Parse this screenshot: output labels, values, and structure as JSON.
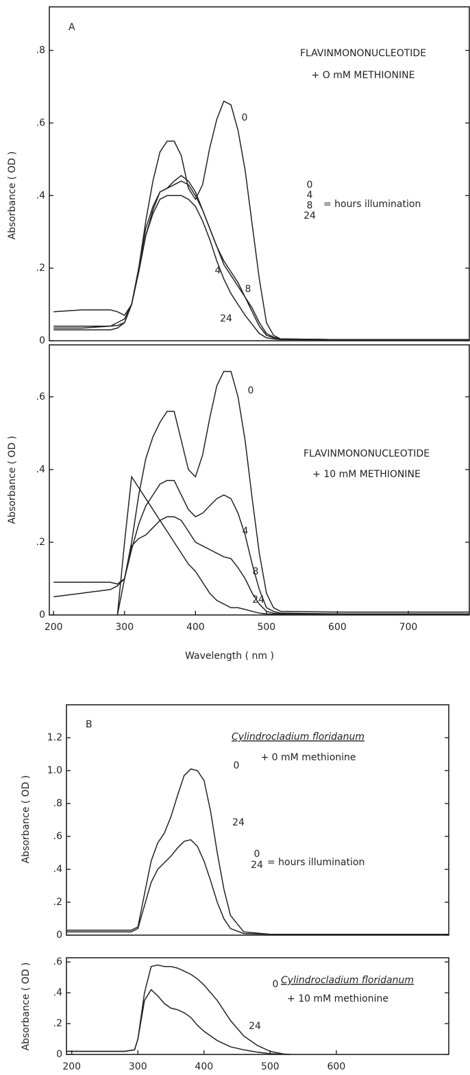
{
  "chart_data": [
    {
      "type": "line",
      "ylabel": "Absorbance ( OD )",
      "annotations": [
        "A",
        "FLAVINMONONUCLEOTIDE",
        "+ O mM METHIONINE",
        "= hours illumination"
      ],
      "xlim": [
        194,
        786
      ],
      "ylim": [
        0,
        0.92
      ],
      "yticks": [
        0,
        {
          "value": 0.2,
          "label": ".2"
        },
        {
          "value": 0.4,
          "label": ".4"
        },
        {
          "value": 0.6,
          "label": ".6"
        },
        {
          "value": 0.8,
          "label": ".8"
        }
      ],
      "x": [
        200,
        240,
        280,
        290,
        300,
        310,
        320,
        330,
        340,
        350,
        360,
        370,
        380,
        390,
        400,
        410,
        420,
        430,
        440,
        450,
        460,
        470,
        480,
        490,
        500,
        510,
        520,
        600,
        700,
        786
      ],
      "series": [
        {
          "name": "0",
          "color": "#222",
          "values": [
            0.035,
            0.035,
            0.04,
            0.05,
            0.06,
            0.1,
            0.2,
            0.33,
            0.44,
            0.52,
            0.55,
            0.55,
            0.51,
            0.42,
            0.39,
            0.43,
            0.53,
            0.61,
            0.66,
            0.65,
            0.58,
            0.47,
            0.32,
            0.17,
            0.05,
            0.015,
            0.005,
            0.003,
            0.003,
            0.003
          ]
        },
        {
          "name": "4",
          "color": "#222",
          "values": [
            0.03,
            0.03,
            0.03,
            0.035,
            0.05,
            0.1,
            0.19,
            0.29,
            0.36,
            0.41,
            0.42,
            0.43,
            0.44,
            0.43,
            0.4,
            0.36,
            0.31,
            0.26,
            0.21,
            0.18,
            0.15,
            0.12,
            0.09,
            0.05,
            0.02,
            0.01,
            0.005,
            0.003,
            0.003,
            0.003
          ]
        },
        {
          "name": "8",
          "color": "#222",
          "values": [
            0.04,
            0.04,
            0.04,
            0.042,
            0.05,
            0.1,
            0.2,
            0.31,
            0.37,
            0.41,
            0.42,
            0.44,
            0.455,
            0.44,
            0.41,
            0.36,
            0.31,
            0.26,
            0.22,
            0.19,
            0.16,
            0.12,
            0.08,
            0.04,
            0.015,
            0.008,
            0.005,
            0.003,
            0.003,
            0.003
          ]
        },
        {
          "name": "24",
          "color": "#222",
          "values": [
            0.08,
            0.085,
            0.085,
            0.08,
            0.07,
            0.1,
            0.19,
            0.29,
            0.35,
            0.39,
            0.4,
            0.4,
            0.4,
            0.39,
            0.37,
            0.33,
            0.28,
            0.22,
            0.17,
            0.13,
            0.1,
            0.07,
            0.045,
            0.02,
            0.008,
            0.005,
            0.003,
            0.002,
            0.002,
            0.002
          ]
        }
      ]
    },
    {
      "type": "line",
      "ylabel": "Absorbance ( OD )",
      "xlabel": "Wavelength ( nm )",
      "annotations": [
        "FLAVINMONONUCLEOTIDE",
        "+ 10 mM METHIONINE"
      ],
      "xlim": [
        194,
        786
      ],
      "ylim": [
        0,
        0.743
      ],
      "xticks": [
        200,
        300,
        400,
        500,
        600,
        700
      ],
      "yticks": [
        0,
        {
          "value": 0.2,
          "label": ".2"
        },
        {
          "value": 0.4,
          "label": ".4"
        },
        {
          "value": 0.6,
          "label": ".6"
        }
      ],
      "x": [
        200,
        240,
        280,
        290,
        300,
        310,
        320,
        330,
        340,
        350,
        360,
        370,
        380,
        390,
        400,
        410,
        420,
        430,
        440,
        450,
        460,
        470,
        480,
        490,
        500,
        510,
        520,
        600,
        700,
        786
      ],
      "series": [
        {
          "name": "0",
          "color": "#222",
          "values": [
            0.09,
            0.09,
            0.09,
            0.085,
            0.1,
            0.2,
            0.33,
            0.43,
            0.49,
            0.53,
            0.56,
            0.56,
            0.48,
            0.4,
            0.38,
            0.44,
            0.54,
            0.63,
            0.67,
            0.67,
            0.6,
            0.48,
            0.32,
            0.17,
            0.06,
            0.02,
            0.01,
            0.008,
            0.008,
            0.008
          ]
        },
        {
          "name": "4",
          "color": "#222",
          "values": [
            0.05,
            0.06,
            0.07,
            0.08,
            0.1,
            0.18,
            0.25,
            0.3,
            0.33,
            0.36,
            0.37,
            0.37,
            0.33,
            0.29,
            0.27,
            0.28,
            0.3,
            0.32,
            0.33,
            0.32,
            0.28,
            0.22,
            0.14,
            0.07,
            0.02,
            0.01,
            0.005,
            0.003,
            0.003,
            0.003
          ]
        },
        {
          "name": "8",
          "color": "#222",
          "values": [
            null,
            null,
            null,
            0,
            0.1,
            0.19,
            0.21,
            0.22,
            0.24,
            0.26,
            0.27,
            0.27,
            0.26,
            0.23,
            0.2,
            0.19,
            0.18,
            0.17,
            0.16,
            0.155,
            0.13,
            0.1,
            0.06,
            0.03,
            0.01,
            0.005,
            0.003,
            0.002,
            0.002,
            0.002
          ]
        },
        {
          "name": "24",
          "color": "#222",
          "values": [
            null,
            null,
            null,
            0,
            0.2,
            0.38,
            0.35,
            0.32,
            0.29,
            0.26,
            0.23,
            0.2,
            0.17,
            0.14,
            0.12,
            0.09,
            0.06,
            0.04,
            0.03,
            0.02,
            0.02,
            0.015,
            0.01,
            0.005,
            0.003,
            0.002,
            0.002,
            0.002,
            0.002,
            0.002
          ]
        }
      ]
    },
    {
      "type": "line",
      "ylabel": "Absorbance ( OD )",
      "annotations": [
        "B",
        "Cylindrocladium floridanum",
        "+ 0 mM methionine",
        "= hours illumination"
      ],
      "xlim": [
        192,
        770
      ],
      "ylim": [
        0,
        1.4
      ],
      "yticks": [
        0,
        {
          "value": 0.2,
          "label": ".2"
        },
        {
          "value": 0.4,
          "label": ".4"
        },
        {
          "value": 0.6,
          "label": ".6"
        },
        {
          "value": 0.8,
          "label": ".8"
        },
        {
          "value": 1.0,
          "label": "1.0"
        },
        {
          "value": 1.2,
          "label": "1.2"
        }
      ],
      "x": [
        192,
        260,
        290,
        300,
        310,
        320,
        330,
        340,
        350,
        360,
        370,
        380,
        390,
        400,
        410,
        420,
        430,
        440,
        460,
        500,
        600,
        770
      ],
      "series": [
        {
          "name": "0",
          "color": "#222",
          "values": [
            0.03,
            0.03,
            0.03,
            0.05,
            0.25,
            0.45,
            0.56,
            0.62,
            0.72,
            0.85,
            0.97,
            1.01,
            1.0,
            0.94,
            0.75,
            0.5,
            0.28,
            0.12,
            0.02,
            0.005,
            0.005,
            0.005
          ]
        },
        {
          "name": "24",
          "color": "#222",
          "values": [
            0.02,
            0.02,
            0.02,
            0.04,
            0.18,
            0.32,
            0.4,
            0.44,
            0.48,
            0.53,
            0.57,
            0.58,
            0.54,
            0.45,
            0.33,
            0.2,
            0.1,
            0.04,
            0.01,
            0.005,
            0.005,
            0.005
          ]
        }
      ]
    },
    {
      "type": "line",
      "ylabel": "Absorbance ( OD )",
      "annotations": [
        "Cylindrocladium floridanum",
        "+ 10 mM methionine"
      ],
      "xlim": [
        192,
        770
      ],
      "ylim": [
        0,
        0.627
      ],
      "xticks": [
        200,
        300,
        400,
        500,
        600
      ],
      "yticks": [
        0,
        {
          "value": 0.2,
          "label": ".2"
        },
        {
          "value": 0.4,
          "label": ".4"
        },
        {
          "value": 0.6,
          "label": ".6"
        }
      ],
      "x": [
        192,
        280,
        295,
        300,
        310,
        320,
        330,
        340,
        350,
        360,
        370,
        380,
        390,
        400,
        420,
        440,
        460,
        480,
        500,
        520,
        530
      ],
      "series": [
        {
          "name": "0",
          "color": "#222",
          "values": [
            0.02,
            0.02,
            0.03,
            0.1,
            0.4,
            0.57,
            0.58,
            0.57,
            0.57,
            0.56,
            0.54,
            0.52,
            0.49,
            0.45,
            0.35,
            0.22,
            0.12,
            0.06,
            0.02,
            0.003,
            0
          ]
        },
        {
          "name": "24",
          "color": "#222",
          "values": [
            0.02,
            0.02,
            0.03,
            0.1,
            0.35,
            0.42,
            0.38,
            0.33,
            0.3,
            0.29,
            0.27,
            0.24,
            0.19,
            0.15,
            0.09,
            0.05,
            0.03,
            0.015,
            0.005,
            0.002,
            0
          ]
        }
      ]
    }
  ]
}
